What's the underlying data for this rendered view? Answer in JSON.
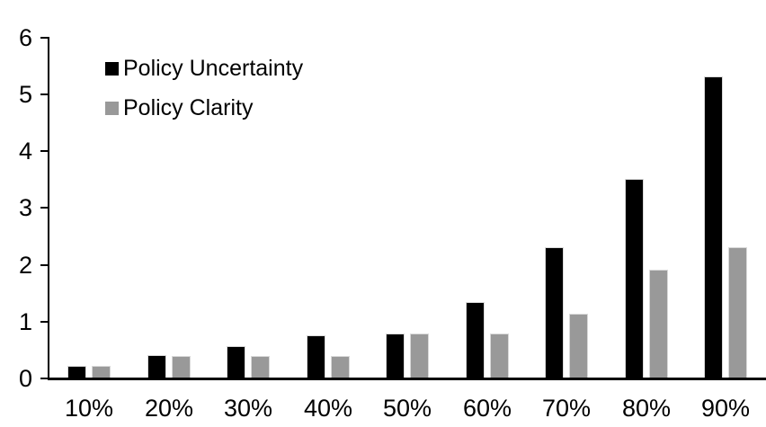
{
  "chart_data": {
    "type": "bar",
    "title": "",
    "categories": [
      "10%",
      "20%",
      "30%",
      "40%",
      "50%",
      "60%",
      "70%",
      "80%",
      "90%"
    ],
    "series": [
      {
        "name": "Policy Uncertainty",
        "color": "#000000",
        "values": [
          0.2,
          0.4,
          0.55,
          0.75,
          0.77,
          1.33,
          2.3,
          3.5,
          5.3
        ]
      },
      {
        "name": "Policy Clarity",
        "color": "#999999",
        "values": [
          0.2,
          0.38,
          0.38,
          0.38,
          0.77,
          0.77,
          1.13,
          1.9,
          2.3
        ]
      }
    ],
    "xlabel": "",
    "ylabel": "",
    "ylim": [
      0,
      6
    ],
    "y_tick_interval": 1,
    "y_tick_labels": [
      "0",
      "1",
      "2",
      "3",
      "4",
      "5",
      "6"
    ],
    "grid": false,
    "legend_position": "top-left"
  },
  "colors": {
    "background": "#ffffff",
    "axis": "#000000",
    "bar_border": "#d9d9d9",
    "text": "#000000"
  }
}
